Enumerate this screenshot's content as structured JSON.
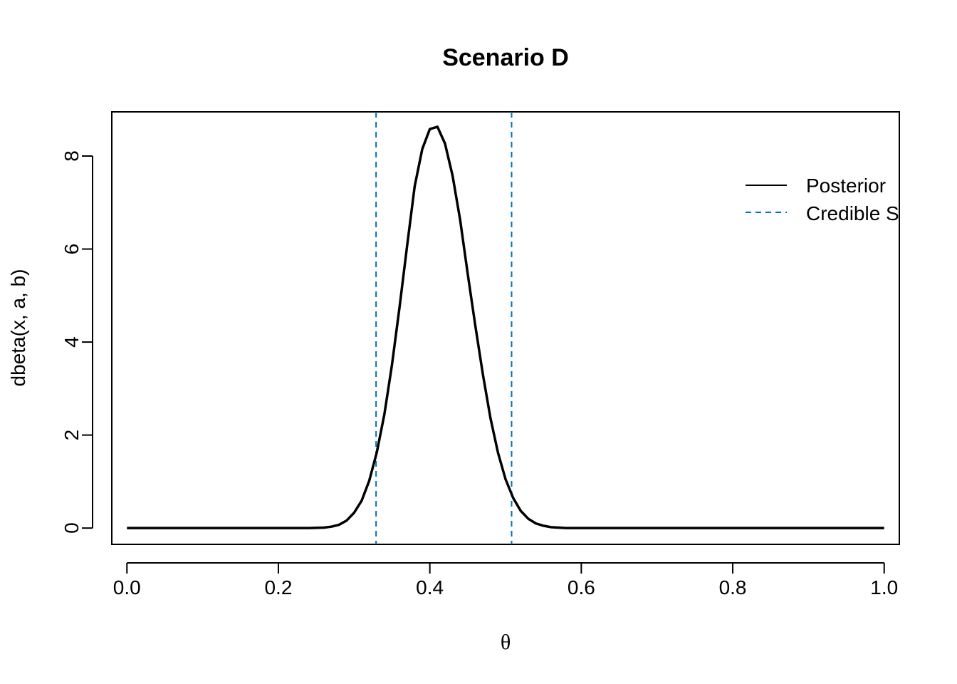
{
  "chart_data": {
    "type": "line",
    "title": "Scenario D",
    "xlabel": "θ",
    "ylabel": "dbeta(x, a, b)",
    "xlim": [
      -0.02,
      1.02
    ],
    "ylim": [
      -0.35,
      8.95
    ],
    "xticks": [
      "0.0",
      "0.2",
      "0.4",
      "0.6",
      "0.8",
      "1.0"
    ],
    "yticks": [
      "0",
      "2",
      "4",
      "6",
      "8"
    ],
    "grid": false,
    "legend_position": "top-right",
    "series": [
      {
        "name": "Posterior",
        "color": "#000000",
        "style": "solid",
        "x": [
          0.0,
          0.02,
          0.04,
          0.06,
          0.08,
          0.1,
          0.12,
          0.14,
          0.16,
          0.18,
          0.2,
          0.22,
          0.24,
          0.26,
          0.27,
          0.28,
          0.29,
          0.3,
          0.31,
          0.32,
          0.33,
          0.34,
          0.35,
          0.36,
          0.37,
          0.38,
          0.39,
          0.4,
          0.41,
          0.42,
          0.43,
          0.44,
          0.45,
          0.46,
          0.47,
          0.48,
          0.49,
          0.5,
          0.51,
          0.52,
          0.53,
          0.54,
          0.55,
          0.56,
          0.57,
          0.58,
          0.6,
          0.65,
          0.7,
          0.75,
          0.8,
          0.85,
          0.9,
          0.95,
          1.0
        ],
        "y": [
          0,
          0,
          0,
          0,
          0,
          0,
          0,
          0,
          0,
          0,
          0,
          0,
          0,
          0.01,
          0.03,
          0.07,
          0.16,
          0.33,
          0.59,
          1.02,
          1.63,
          2.45,
          3.51,
          4.75,
          6.07,
          7.35,
          8.15,
          8.58,
          8.63,
          8.27,
          7.58,
          6.63,
          5.47,
          4.36,
          3.31,
          2.37,
          1.62,
          1.05,
          0.65,
          0.37,
          0.2,
          0.1,
          0.05,
          0.02,
          0.01,
          0,
          0,
          0,
          0,
          0,
          0,
          0,
          0,
          0,
          0
        ]
      },
      {
        "name": "Credible S",
        "color": "#0072B2",
        "style": "dashed",
        "vlines": [
          0.329,
          0.508
        ]
      }
    ]
  }
}
